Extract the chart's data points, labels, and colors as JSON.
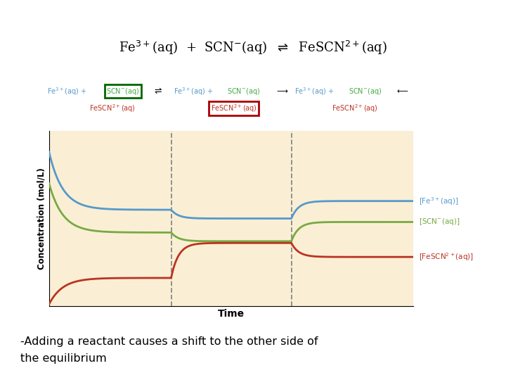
{
  "bg_color": "#FAEFD4",
  "fig_bg": "#FFFFFF",
  "line_blue": "#5599CC",
  "line_green": "#77AA44",
  "line_red": "#BB3322",
  "vline_color": "#888888",
  "xlabel": "Time",
  "ylabel": "Concentration (mol/L)",
  "v1": 0.335,
  "v2": 0.665,
  "caption_line1": "-Adding a reactant causes a shift to the other side of",
  "caption_line2": "the equilibrium",
  "ann_blue": "#5599CC",
  "ann_green": "#44AA44",
  "ann_red": "#BB3322"
}
